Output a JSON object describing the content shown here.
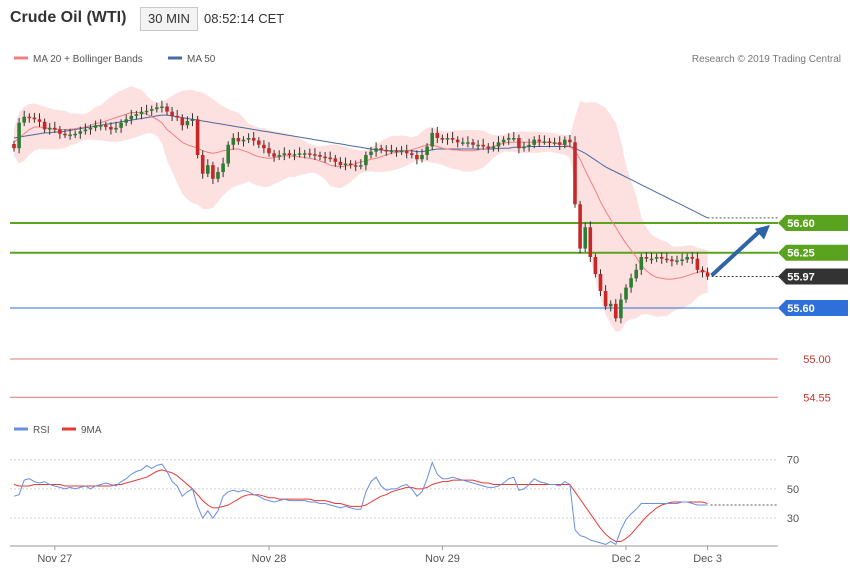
{
  "header": {
    "title": "Crude Oil (WTI)",
    "timeframe": "30 MIN",
    "time": "08:52:14 CET"
  },
  "legend": {
    "ma20": "MA 20 + Bollinger Bands",
    "ma50": "MA 50",
    "copyright": "Research © 2019 Trading Central"
  },
  "rsi_legend": {
    "rsi": "RSI",
    "ma9": "9MA"
  },
  "colors": {
    "bull": "#2e7d32",
    "bear": "#c62828",
    "ma20": "#f08080",
    "ma50": "#4a6a9c",
    "band": "#fde0e0",
    "resistance": "#5aa31f",
    "support": "#2f6fd9",
    "level_line": "#e07878",
    "last_price": "#333333",
    "arrow": "#2f64a8",
    "rsi": "#6a8ee0",
    "rsi_ma": "#e53935"
  },
  "chart_data": [
    {
      "type": "candlestick",
      "title": "Crude Oil (WTI)",
      "timeframe": "30 MIN",
      "ylim": [
        54.4,
        58.4
      ],
      "x_labels": [
        "Nov 27",
        "Nov 28",
        "Nov 29",
        "Dec 2",
        "Dec 3"
      ],
      "levels": [
        {
          "value": 56.6,
          "label": "56.60",
          "kind": "resistance"
        },
        {
          "value": 56.25,
          "label": "56.25",
          "kind": "resistance"
        },
        {
          "value": 55.97,
          "label": "55.97",
          "kind": "last"
        },
        {
          "value": 55.6,
          "label": "55.60",
          "kind": "support"
        },
        {
          "value": 55.0,
          "label": "55.00",
          "kind": "level"
        },
        {
          "value": 54.55,
          "label": "54.55",
          "kind": "level"
        }
      ],
      "closes": [
        57.48,
        57.78,
        57.85,
        57.84,
        57.82,
        57.79,
        57.7,
        57.72,
        57.7,
        57.65,
        57.64,
        57.64,
        57.65,
        57.68,
        57.7,
        57.72,
        57.75,
        57.75,
        57.73,
        57.7,
        57.72,
        57.78,
        57.82,
        57.86,
        57.88,
        57.91,
        57.92,
        57.94,
        57.96,
        57.97,
        57.91,
        57.86,
        57.84,
        57.75,
        57.8,
        57.82,
        57.4,
        57.18,
        57.28,
        57.12,
        57.2,
        57.3,
        57.52,
        57.6,
        57.56,
        57.58,
        57.6,
        57.57,
        57.52,
        57.48,
        57.42,
        57.38,
        57.4,
        57.42,
        57.4,
        57.41,
        57.42,
        57.42,
        57.41,
        57.4,
        57.38,
        57.37,
        57.36,
        57.32,
        57.28,
        57.3,
        57.28,
        57.27,
        57.28,
        57.4,
        57.44,
        57.48,
        57.46,
        57.45,
        57.45,
        57.44,
        57.45,
        57.42,
        57.4,
        57.35,
        57.4,
        57.5,
        57.66,
        57.6,
        57.58,
        57.6,
        57.58,
        57.55,
        57.55,
        57.55,
        57.52,
        57.52,
        57.5,
        57.48,
        57.5,
        57.55,
        57.58,
        57.6,
        57.6,
        57.48,
        57.5,
        57.52,
        57.58,
        57.56,
        57.56,
        57.55,
        57.55,
        57.52,
        57.58,
        57.55,
        56.82,
        56.3,
        56.55,
        56.2,
        56.0,
        55.8,
        55.62,
        55.65,
        55.48,
        55.7,
        55.84,
        55.95,
        56.05,
        56.2,
        56.18,
        56.18,
        56.2,
        56.18,
        56.17,
        56.15,
        56.16,
        56.17,
        56.2,
        56.18,
        56.05,
        56.02,
        55.97
      ],
      "ma20": [
        57.55,
        57.6,
        57.65,
        57.7,
        57.73,
        57.73,
        57.72,
        57.71,
        57.7,
        57.7,
        57.7,
        57.7,
        57.71,
        57.72,
        57.73,
        57.75,
        57.77,
        57.78,
        57.8,
        57.82,
        57.84,
        57.86,
        57.88,
        57.9,
        57.9,
        57.9,
        57.88,
        57.85,
        57.82,
        57.78,
        57.7,
        57.65,
        57.6,
        57.55,
        57.52,
        57.5,
        57.48,
        57.45,
        57.43,
        57.42,
        57.43,
        57.45,
        57.46,
        57.47,
        57.47,
        57.45,
        57.43,
        57.4,
        57.38,
        57.37,
        57.36,
        57.37,
        57.38,
        57.39,
        57.39,
        57.38,
        57.38,
        57.37,
        57.36,
        57.35,
        57.33,
        57.31,
        57.28,
        57.27,
        57.26,
        57.27,
        57.28,
        57.3,
        57.32,
        57.33,
        57.35,
        57.36,
        57.38,
        57.4,
        57.42,
        57.43,
        57.44,
        57.45,
        57.46,
        57.48,
        57.5,
        57.52,
        57.52,
        57.5,
        57.48,
        57.47,
        57.46,
        57.46,
        57.45,
        57.45,
        57.45,
        57.46,
        57.47,
        57.48,
        57.5,
        57.52,
        57.54,
        57.55,
        57.55,
        57.55,
        57.55,
        57.55,
        57.55,
        57.55,
        57.55,
        57.55,
        57.54,
        57.53,
        57.52,
        57.5,
        57.45,
        57.35,
        57.22,
        57.1,
        56.98,
        56.85,
        56.74,
        56.64,
        56.55,
        56.45,
        56.36,
        56.28,
        56.2,
        56.1,
        56.04,
        55.99,
        55.96,
        55.95,
        55.94,
        55.94,
        55.95,
        55.96,
        55.98,
        56.0,
        56.02,
        56.03,
        56.03
      ],
      "ma50": [
        57.6,
        57.61,
        57.62,
        57.63,
        57.64,
        57.65,
        57.66,
        57.66,
        57.67,
        57.67,
        57.68,
        57.69,
        57.7,
        57.71,
        57.72,
        57.73,
        57.74,
        57.75,
        57.76,
        57.77,
        57.78,
        57.79,
        57.8,
        57.81,
        57.82,
        57.83,
        57.84,
        57.85,
        57.86,
        57.87,
        57.87,
        57.86,
        57.85,
        57.84,
        57.83,
        57.82,
        57.81,
        57.8,
        57.79,
        57.78,
        57.77,
        57.76,
        57.75,
        57.74,
        57.73,
        57.72,
        57.71,
        57.7,
        57.69,
        57.68,
        57.67,
        57.66,
        57.65,
        57.64,
        57.63,
        57.62,
        57.61,
        57.6,
        57.59,
        57.58,
        57.57,
        57.56,
        57.55,
        57.54,
        57.53,
        57.52,
        57.51,
        57.5,
        57.49,
        57.48,
        57.47,
        57.46,
        57.46,
        57.45,
        57.45,
        57.45,
        57.45,
        57.45,
        57.45,
        57.44,
        57.44,
        57.45,
        57.46,
        57.47,
        57.47,
        57.47,
        57.47,
        57.47,
        57.47,
        57.47,
        57.47,
        57.47,
        57.47,
        57.47,
        57.47,
        57.48,
        57.48,
        57.48,
        57.49,
        57.49,
        57.49,
        57.5,
        57.5,
        57.5,
        57.5,
        57.5,
        57.5,
        57.5,
        57.5,
        57.5,
        57.48,
        57.45,
        57.42,
        57.38,
        57.34,
        57.3,
        57.26,
        57.23,
        57.2,
        57.17,
        57.14,
        57.11,
        57.08,
        57.05,
        57.02,
        56.99,
        56.96,
        56.93,
        56.9,
        56.87,
        56.84,
        56.81,
        56.78,
        56.75,
        56.72,
        56.69,
        56.66
      ]
    },
    {
      "type": "line",
      "title": "RSI",
      "ylim": [
        15,
        78
      ],
      "y_ticks": [
        30,
        50,
        70
      ],
      "x_labels": [
        "Nov 27",
        "Nov 28",
        "Nov 29",
        "Dec 2",
        "Dec 3"
      ],
      "series": [
        {
          "name": "RSI",
          "values": [
            45,
            46,
            56,
            57,
            55,
            54,
            55,
            53,
            52,
            51,
            50,
            51,
            50,
            51,
            52,
            50,
            52,
            53,
            54,
            53,
            52,
            55,
            57,
            60,
            62,
            63,
            66,
            64,
            66,
            67,
            62,
            55,
            52,
            45,
            48,
            50,
            38,
            30,
            35,
            30,
            35,
            45,
            48,
            49,
            48,
            49,
            48,
            46,
            45,
            43,
            42,
            41,
            42,
            43,
            42,
            42,
            42,
            42,
            41,
            41,
            40,
            40,
            39,
            38,
            37,
            38,
            37,
            36,
            36,
            48,
            55,
            58,
            52,
            49,
            50,
            50,
            52,
            53,
            50,
            45,
            48,
            57,
            68,
            60,
            57,
            57,
            58,
            57,
            56,
            55,
            54,
            53,
            52,
            51,
            51,
            52,
            54,
            57,
            58,
            49,
            50,
            53,
            57,
            55,
            54,
            53,
            53,
            52,
            55,
            53,
            22,
            18,
            17,
            15,
            14,
            13,
            12,
            14,
            12,
            22,
            29,
            33,
            36,
            40,
            40,
            40,
            40,
            40,
            40,
            40,
            40,
            41,
            41,
            40,
            39,
            39,
            39
          ]
        },
        {
          "name": "9MA",
          "values": [
            53,
            52,
            52,
            52,
            53,
            53,
            53,
            53,
            53,
            53,
            52,
            52,
            52,
            52,
            52,
            52,
            52,
            52,
            52,
            52,
            53,
            53,
            54,
            55,
            56,
            57,
            58,
            60,
            62,
            63,
            62,
            61,
            59,
            56,
            53,
            50,
            46,
            42,
            39,
            37,
            37,
            38,
            39,
            41,
            43,
            45,
            46,
            46,
            46,
            45,
            44,
            44,
            43,
            43,
            43,
            43,
            43,
            43,
            43,
            42,
            42,
            42,
            41,
            40,
            40,
            39,
            38,
            38,
            38,
            39,
            41,
            43,
            45,
            46,
            48,
            49,
            50,
            51,
            51,
            50,
            50,
            51,
            53,
            54,
            55,
            55,
            56,
            56,
            56,
            56,
            56,
            55,
            54,
            54,
            53,
            53,
            53,
            53,
            53,
            53,
            53,
            53,
            53,
            53,
            53,
            53,
            53,
            53,
            53,
            53,
            48,
            43,
            38,
            33,
            28,
            23,
            19,
            16,
            14,
            14,
            16,
            19,
            23,
            27,
            31,
            34,
            37,
            39,
            40,
            41,
            41,
            41,
            41,
            41,
            41,
            41,
            40
          ]
        }
      ]
    }
  ]
}
